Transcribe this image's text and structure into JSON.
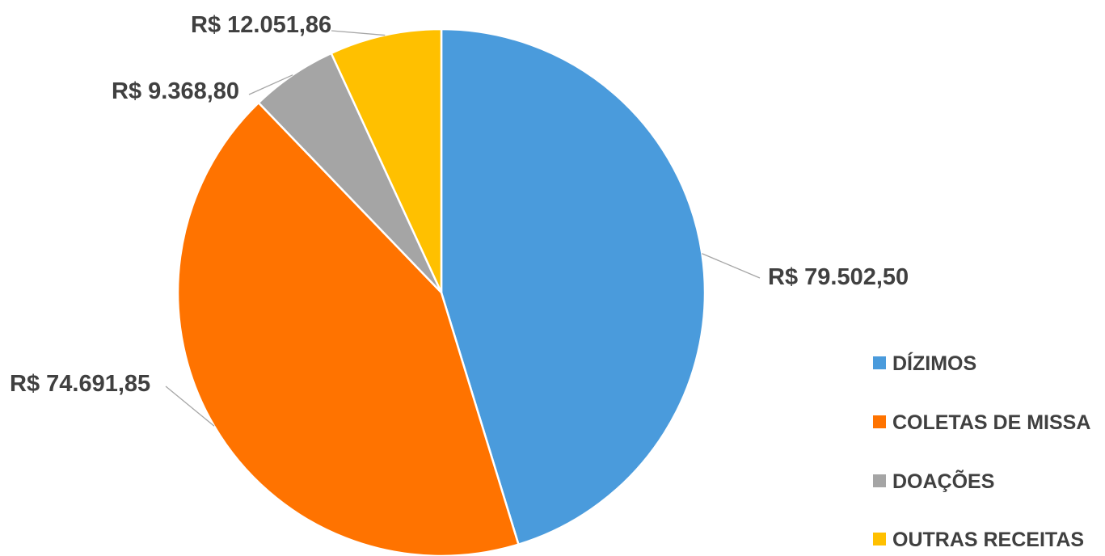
{
  "chart_data": {
    "type": "pie",
    "title": "",
    "categories": [
      "DÍZIMOS",
      "COLETAS DE MISSA",
      "DOAÇÕES",
      "OUTRAS RECEITAS"
    ],
    "values": [
      79502.5,
      74691.85,
      9368.8,
      12051.86
    ],
    "data_labels": [
      "R$ 79.502,50",
      "R$ 74.691,85",
      "R$ 9.368,80",
      "R$ 12.051,86"
    ],
    "colors": [
      "#4a9bdc",
      "#ff7300",
      "#a5a5a5",
      "#ffc000"
    ],
    "legend_position": "right-bottom",
    "start_angle_deg": 0,
    "direction": "clockwise"
  }
}
